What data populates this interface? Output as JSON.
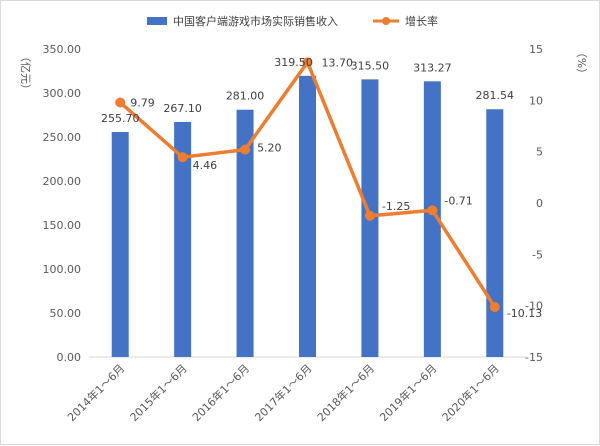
{
  "chart_data": {
    "type": "bar",
    "categories": [
      "2014年1～6月",
      "2015年1～6月",
      "2016年1～6月",
      "2017年1～6月",
      "2018年1～6月",
      "2019年1～6月",
      "2020年1～6月"
    ],
    "series": [
      {
        "name": "中国客户端游戏市场实际销售收入",
        "type": "bar",
        "axis": "left",
        "color": "#4472c4",
        "values": [
          255.7,
          267.1,
          281.0,
          319.5,
          315.5,
          313.27,
          281.54
        ],
        "labels": [
          "255.70",
          "267.10",
          "281.00",
          "319.50",
          "315.50",
          "313.27",
          "281.54"
        ]
      },
      {
        "name": "增长率",
        "type": "line",
        "axis": "right",
        "color": "#ed7d31",
        "values": [
          9.79,
          4.46,
          5.2,
          13.7,
          -1.25,
          -0.71,
          -10.13
        ],
        "labels": [
          "9.79",
          "4.46",
          "5.20",
          "13.70",
          "-1.25",
          "-0.71",
          "-10.13"
        ]
      }
    ],
    "ylabel": "（亿元）",
    "y2label": "（%）",
    "ylim": [
      0,
      350
    ],
    "y2lim": [
      -15,
      15
    ],
    "yticks": [
      "0.00",
      "50.00",
      "100.00",
      "150.00",
      "200.00",
      "250.00",
      "300.00",
      "350.00"
    ],
    "y2ticks": [
      "-15",
      "-10",
      "-5",
      "0",
      "5",
      "10",
      "15"
    ],
    "legend_position": "top",
    "grid": false
  }
}
